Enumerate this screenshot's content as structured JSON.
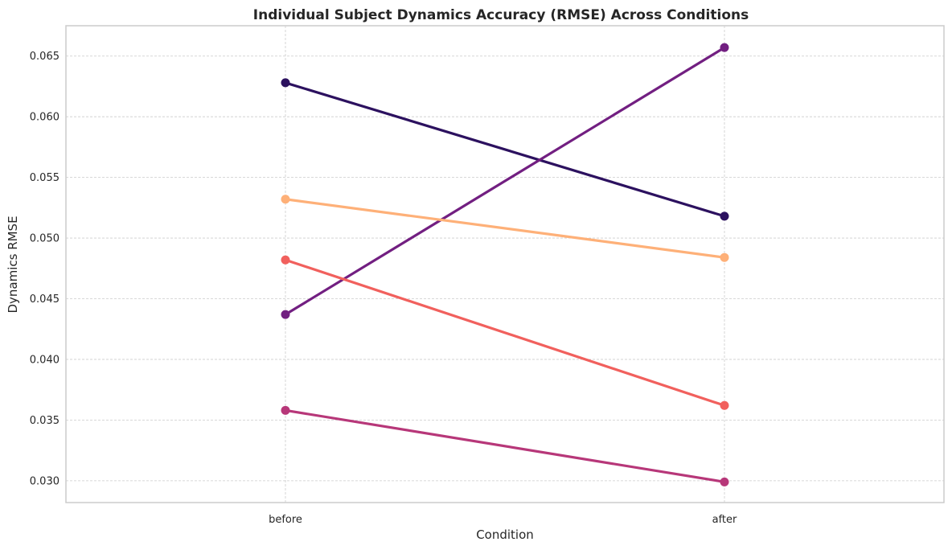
{
  "chart_data": {
    "type": "line",
    "title": "Individual Subject Dynamics Accuracy (RMSE) Across Conditions",
    "xlabel": "Condition",
    "ylabel": "Dynamics RMSE",
    "categories": [
      "before",
      "after"
    ],
    "ylim": [
      0.0282,
      0.0675
    ],
    "yticks": [
      0.03,
      0.035,
      0.04,
      0.045,
      0.05,
      0.055,
      0.06,
      0.065
    ],
    "ytick_labels": [
      "0.030",
      "0.035",
      "0.040",
      "0.045",
      "0.050",
      "0.055",
      "0.060",
      "0.065"
    ],
    "grid": true,
    "legend": "none",
    "series": [
      {
        "values": [
          0.0628,
          0.0518
        ],
        "color": "#2c115f"
      },
      {
        "values": [
          0.0437,
          0.0657
        ],
        "color": "#721f81"
      },
      {
        "values": [
          0.0358,
          0.0299
        ],
        "color": "#b73779"
      },
      {
        "values": [
          0.0482,
          0.0362
        ],
        "color": "#f1605d"
      },
      {
        "values": [
          0.0532,
          0.0484
        ],
        "color": "#feb078"
      }
    ]
  }
}
